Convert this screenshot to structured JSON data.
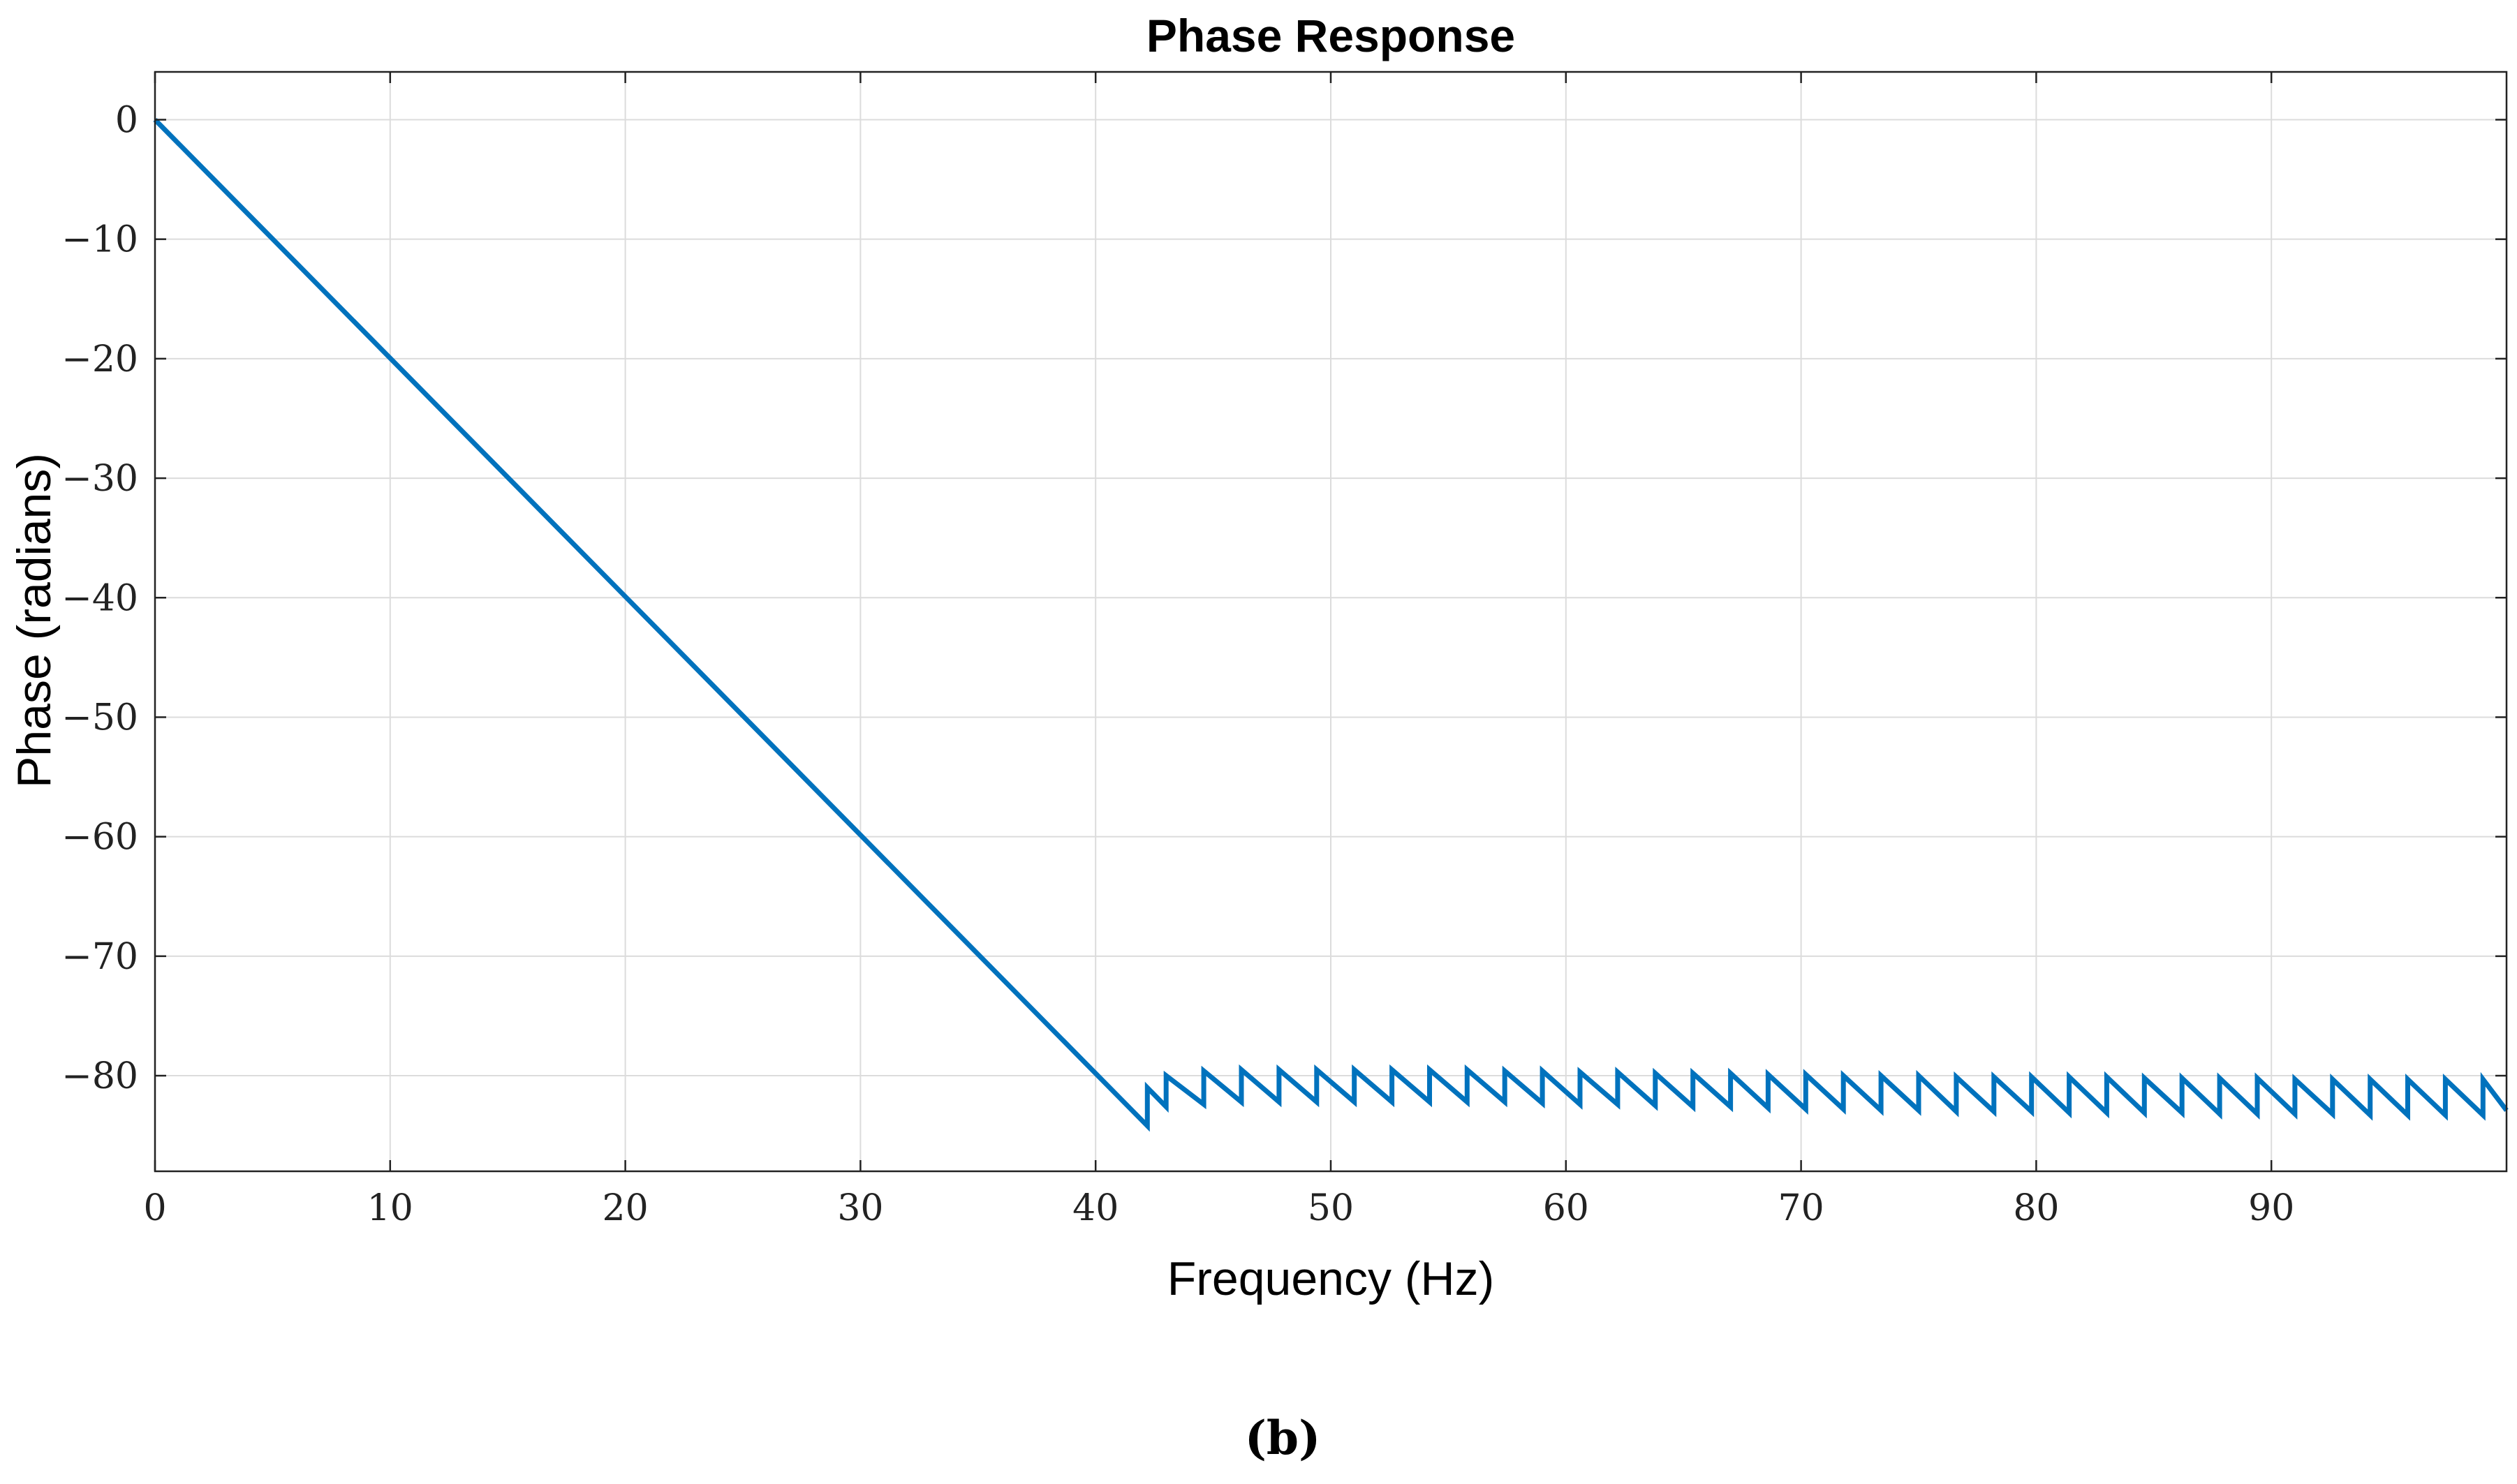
{
  "chart_data": {
    "type": "line",
    "title": "Phase Response",
    "xlabel": "Frequency (Hz)",
    "ylabel": "Phase (radians)",
    "caption": "(b)",
    "xlim": [
      0,
      100
    ],
    "ylim": [
      -88,
      4
    ],
    "grid": true,
    "x_ticks": [
      0,
      10,
      20,
      30,
      40,
      50,
      60,
      70,
      80,
      90
    ],
    "x_tick_labels": [
      "0",
      "10",
      "20",
      "30",
      "40",
      "50",
      "60",
      "70",
      "80",
      "90"
    ],
    "y_ticks": [
      0,
      -10,
      -20,
      -30,
      -40,
      -50,
      -60,
      -70,
      -80
    ],
    "y_tick_labels": [
      "0",
      "−10",
      "−20",
      "−30",
      "−40",
      "−50",
      "−60",
      "−70",
      "−80"
    ],
    "colors": {
      "series": "#0072BD"
    },
    "series": [
      {
        "name": "Phase",
        "x": [
          0,
          42.2,
          42.2,
          43.0,
          43.0,
          44.6,
          44.6,
          46.2,
          46.2,
          47.8,
          47.8,
          49.4,
          49.4,
          51.0,
          51.0,
          52.6,
          52.6,
          54.2,
          54.2,
          55.8,
          55.8,
          57.4,
          57.4,
          59.0,
          59.0,
          60.6,
          60.6,
          62.2,
          62.2,
          63.8,
          63.8,
          65.4,
          65.4,
          67.0,
          67.0,
          68.6,
          68.6,
          70.2,
          70.2,
          71.8,
          71.8,
          73.4,
          73.4,
          75.0,
          75.0,
          76.6,
          76.6,
          78.2,
          78.2,
          79.8,
          79.8,
          81.4,
          81.4,
          83.0,
          83.0,
          84.6,
          84.6,
          86.2,
          86.2,
          87.8,
          87.8,
          89.4,
          89.4,
          91.0,
          91.0,
          92.6,
          92.6,
          94.2,
          94.2,
          95.8,
          95.8,
          97.4,
          97.4,
          99.0,
          99.0,
          100
        ],
        "y": [
          0,
          -84.2,
          -81.0,
          -82.6,
          -80.0,
          -82.4,
          -79.6,
          -82.2,
          -79.5,
          -82.2,
          -79.5,
          -82.2,
          -79.5,
          -82.2,
          -79.5,
          -82.2,
          -79.5,
          -82.2,
          -79.5,
          -82.2,
          -79.5,
          -82.2,
          -79.6,
          -82.3,
          -79.6,
          -82.4,
          -79.7,
          -82.4,
          -79.7,
          -82.5,
          -79.8,
          -82.6,
          -79.8,
          -82.6,
          -79.8,
          -82.7,
          -79.9,
          -82.8,
          -79.9,
          -82.8,
          -80.0,
          -82.9,
          -80.0,
          -82.9,
          -80.0,
          -83.0,
          -80.1,
          -83.0,
          -80.1,
          -83.0,
          -80.1,
          -83.1,
          -80.1,
          -83.1,
          -80.1,
          -83.1,
          -80.2,
          -83.1,
          -80.2,
          -83.2,
          -80.2,
          -83.2,
          -80.2,
          -83.2,
          -80.3,
          -83.2,
          -80.3,
          -83.3,
          -80.3,
          -83.3,
          -80.3,
          -83.3,
          -80.3,
          -83.3,
          -80.3,
          -82.9
        ]
      }
    ]
  }
}
